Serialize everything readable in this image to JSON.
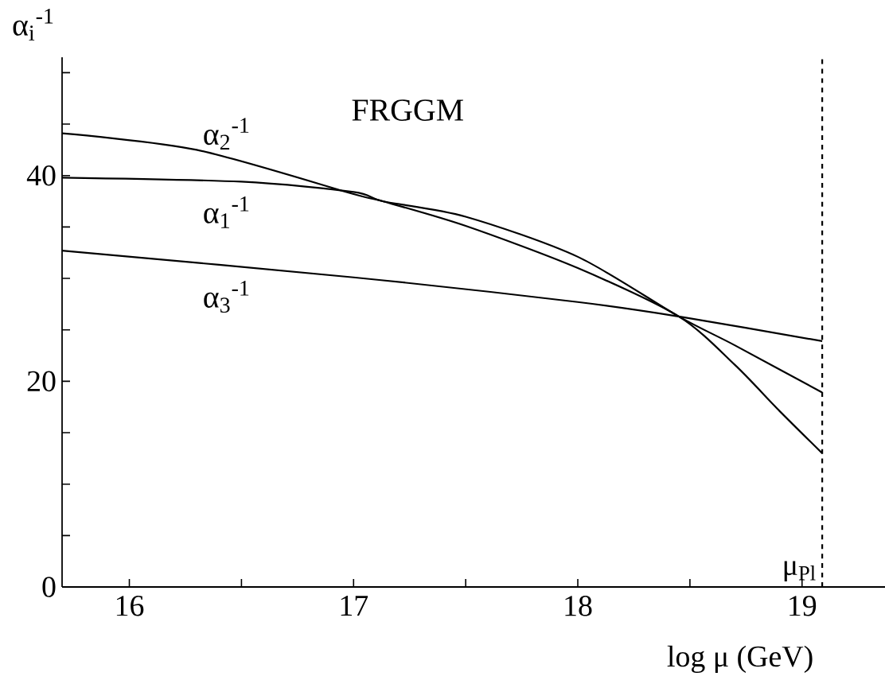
{
  "chart_data": {
    "type": "line",
    "title": "FRGGM",
    "xlabel": "log μ (GeV)",
    "ylabel": "α$_{i}$$^{-1}$",
    "xlim": [
      15.7,
      19.37
    ],
    "ylim": [
      0,
      51.5
    ],
    "xticks": [
      {
        "value": 16,
        "label": "16"
      },
      {
        "value": 16.5,
        "label": null
      },
      {
        "value": 17,
        "label": "17"
      },
      {
        "value": 17.5,
        "label": null
      },
      {
        "value": 18,
        "label": "18"
      },
      {
        "value": 18.5,
        "label": null
      },
      {
        "value": 19,
        "label": "19"
      }
    ],
    "yticks": [
      {
        "value": 0,
        "label": "0"
      },
      {
        "value": 5,
        "label": null
      },
      {
        "value": 10,
        "label": null
      },
      {
        "value": 15,
        "label": null
      },
      {
        "value": 20,
        "label": "20"
      },
      {
        "value": 25,
        "label": null
      },
      {
        "value": 30,
        "label": null
      },
      {
        "value": 35,
        "label": null
      },
      {
        "value": 40,
        "label": "40"
      },
      {
        "value": 45,
        "label": null
      },
      {
        "value": 50,
        "label": null
      }
    ],
    "grid": false,
    "legend": false,
    "marker": "none",
    "line_style": "solid",
    "series": [
      {
        "name": "α$_{2}$$^{-1}$",
        "color": "#000000",
        "x": [
          15.7,
          16.3,
          17.0,
          17.13,
          17.5,
          18.0,
          18.45,
          18.7,
          18.9,
          19.09
        ],
        "values": [
          44.1,
          42.5,
          38.2,
          37.5,
          35.1,
          31.0,
          26.3,
          21.6,
          17.1,
          13.0
        ]
      },
      {
        "name": "α$_{1}$$^{-1}$",
        "color": "#000000",
        "x": [
          15.7,
          16.5,
          17.0,
          17.13,
          17.5,
          18.0,
          18.45,
          18.7,
          19.09
        ],
        "values": [
          39.8,
          39.4,
          38.4,
          37.5,
          36.0,
          32.1,
          26.3,
          23.5,
          18.9
        ]
      },
      {
        "name": "α$_{3}$$^{-1}$",
        "color": "#000000",
        "x": [
          15.7,
          17.0,
          18.0,
          18.45,
          19.09
        ],
        "values": [
          32.7,
          30.1,
          27.7,
          26.3,
          23.9
        ]
      }
    ],
    "ref_lines": [
      {
        "axis": "x",
        "value": 19.09,
        "label": "μ$_{Pl}$",
        "line_style": "dashed",
        "color": "#000000"
      }
    ]
  }
}
